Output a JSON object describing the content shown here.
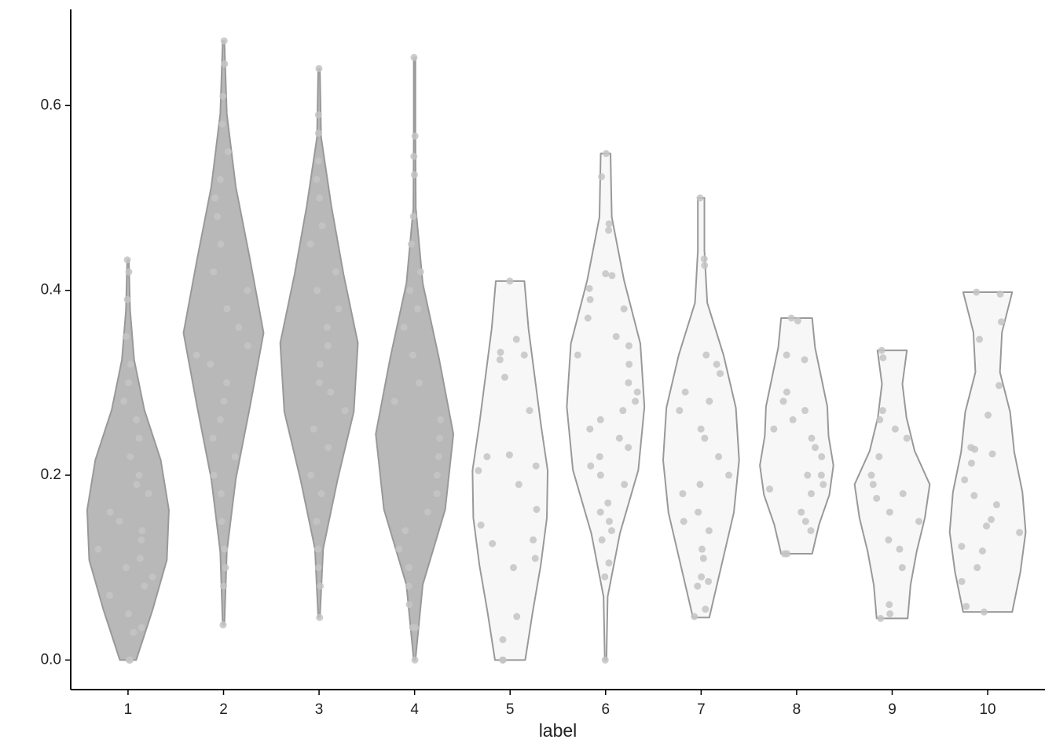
{
  "chart_data": {
    "type": "violin",
    "x_label": "label",
    "categories": [
      "1",
      "2",
      "3",
      "4",
      "5",
      "6",
      "7",
      "8",
      "9",
      "10"
    ],
    "ylim": [
      -0.032,
      0.704
    ],
    "yticks": [
      {
        "value": 0,
        "label": "0.0"
      },
      0.2,
      0.4,
      0.6
    ],
    "violin_stroke": "#999999",
    "point_color": "#c4c4c4",
    "violins": [
      {
        "range": [
          0,
          0.433
        ],
        "density": [
          0.2,
          0.6,
          0.95,
          1.0,
          0.8,
          0.4,
          0.15,
          0.05,
          0.02
        ],
        "fill": "#b8b8b8"
      },
      {
        "range": [
          0.038,
          0.67
        ],
        "density": [
          0.02,
          0.08,
          0.3,
          0.65,
          0.98,
          0.65,
          0.3,
          0.08,
          0.02
        ],
        "fill": "#b8b8b8"
      },
      {
        "range": [
          0.046,
          0.64
        ],
        "density": [
          0.02,
          0.1,
          0.45,
          0.85,
          0.95,
          0.6,
          0.3,
          0.05,
          0.02
        ],
        "fill": "#b8b8b8"
      },
      {
        "range": [
          0,
          0.652
        ],
        "density": [
          0.02,
          0.2,
          0.75,
          0.95,
          0.6,
          0.2,
          0.03,
          0.02,
          0.02
        ],
        "fill": "#b8b8b8"
      },
      {
        "range": [
          0,
          0.41
        ],
        "density": [
          0.37,
          0.55,
          0.75,
          0.9,
          0.92,
          0.75,
          0.6,
          0.45,
          0.35
        ],
        "fill": "#f7f7f7"
      },
      {
        "range": [
          0,
          0.548
        ],
        "density": [
          0.02,
          0.05,
          0.35,
          0.8,
          0.95,
          0.85,
          0.45,
          0.15,
          0.12
        ],
        "fill": "#f7f7f7"
      },
      {
        "range": [
          0.046,
          0.5
        ],
        "density": [
          0.2,
          0.5,
          0.8,
          0.93,
          0.85,
          0.55,
          0.15,
          0.08,
          0.08
        ],
        "fill": "#f7f7f7"
      },
      {
        "range": [
          0.115,
          0.37
        ],
        "density": [
          0.38,
          0.55,
          0.8,
          0.9,
          0.78,
          0.75,
          0.6,
          0.45,
          0.38
        ],
        "fill": "#f7f7f7"
      },
      {
        "range": [
          0.045,
          0.335
        ],
        "density": [
          0.38,
          0.45,
          0.6,
          0.8,
          0.92,
          0.55,
          0.35,
          0.25,
          0.36
        ],
        "fill": "#f7f7f7"
      },
      {
        "range": [
          0.052,
          0.398
        ],
        "density": [
          0.6,
          0.8,
          0.93,
          0.85,
          0.65,
          0.55,
          0.3,
          0.35,
          0.6
        ],
        "fill": "#f7f7f7"
      }
    ],
    "values": [
      [
        0.433,
        0.42,
        0.39,
        0.35,
        0.32,
        0.3,
        0.28,
        0.26,
        0.24,
        0.22,
        0.2,
        0.19,
        0.18,
        0.16,
        0.15,
        0.14,
        0.13,
        0.12,
        0.11,
        0.1,
        0.09,
        0.08,
        0.07,
        0.05,
        0.035,
        0.03,
        0,
        0
      ],
      [
        0.67,
        0.645,
        0.61,
        0.58,
        0.55,
        0.52,
        0.5,
        0.48,
        0.45,
        0.42,
        0.4,
        0.38,
        0.36,
        0.34,
        0.33,
        0.32,
        0.3,
        0.28,
        0.26,
        0.24,
        0.22,
        0.2,
        0.18,
        0.15,
        0.12,
        0.1,
        0.08,
        0.038
      ],
      [
        0.64,
        0.59,
        0.57,
        0.54,
        0.52,
        0.5,
        0.47,
        0.45,
        0.42,
        0.4,
        0.38,
        0.36,
        0.34,
        0.32,
        0.3,
        0.29,
        0.27,
        0.25,
        0.23,
        0.2,
        0.18,
        0.15,
        0.12,
        0.1,
        0.08,
        0.046
      ],
      [
        0.652,
        0.567,
        0.545,
        0.525,
        0.48,
        0.45,
        0.42,
        0.4,
        0.38,
        0.36,
        0.33,
        0.3,
        0.28,
        0.26,
        0.24,
        0.22,
        0.2,
        0.18,
        0.16,
        0.14,
        0.12,
        0.1,
        0.08,
        0.06,
        0.035,
        0.035,
        0
      ],
      [
        0.41,
        0.347,
        0.333,
        0.33,
        0.325,
        0.306,
        0.27,
        0.22,
        0.222,
        0.205,
        0.21,
        0.19,
        0.163,
        0.146,
        0.13,
        0.126,
        0.11,
        0.1,
        0.047,
        0.022,
        0,
        0
      ],
      [
        0.548,
        0.523,
        0.472,
        0.465,
        0.416,
        0.418,
        0.402,
        0.39,
        0.38,
        0.37,
        0.35,
        0.34,
        0.33,
        0.32,
        0.3,
        0.29,
        0.28,
        0.27,
        0.26,
        0.25,
        0.24,
        0.23,
        0.22,
        0.21,
        0.2,
        0.19,
        0.17,
        0.16,
        0.15,
        0.14,
        0.13,
        0.105,
        0.09,
        0
      ],
      [
        0.5,
        0.434,
        0.427,
        0.33,
        0.32,
        0.31,
        0.29,
        0.28,
        0.27,
        0.25,
        0.24,
        0.22,
        0.2,
        0.19,
        0.18,
        0.16,
        0.15,
        0.14,
        0.12,
        0.11,
        0.09,
        0.085,
        0.08,
        0.055,
        0.047
      ],
      [
        0.37,
        0.367,
        0.33,
        0.325,
        0.29,
        0.28,
        0.27,
        0.26,
        0.25,
        0.24,
        0.23,
        0.22,
        0.2,
        0.2,
        0.19,
        0.185,
        0.18,
        0.16,
        0.15,
        0.14,
        0.115,
        0.115
      ],
      [
        0.335,
        0.327,
        0.27,
        0.26,
        0.25,
        0.24,
        0.22,
        0.2,
        0.19,
        0.18,
        0.175,
        0.16,
        0.15,
        0.13,
        0.12,
        0.1,
        0.06,
        0.05,
        0.045
      ],
      [
        0.398,
        0.396,
        0.366,
        0.347,
        0.297,
        0.265,
        0.23,
        0.228,
        0.223,
        0.213,
        0.195,
        0.178,
        0.168,
        0.152,
        0.145,
        0.138,
        0.123,
        0.118,
        0.1,
        0.085,
        0.058,
        0.052
      ]
    ]
  }
}
